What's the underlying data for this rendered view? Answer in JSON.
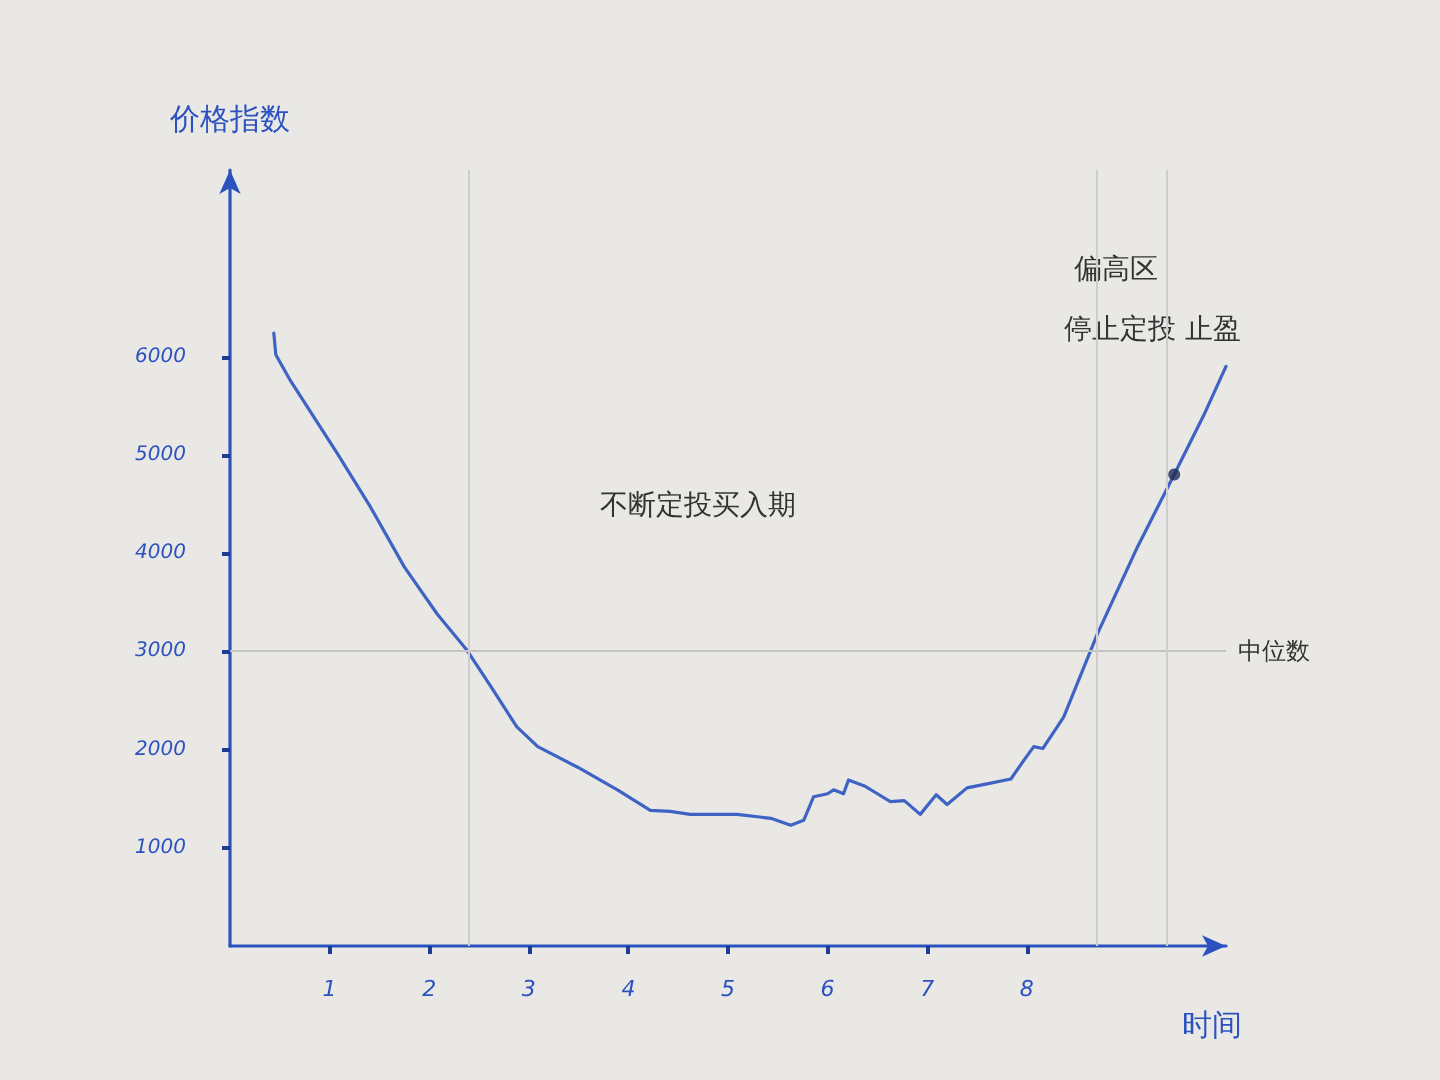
{
  "chart_data": {
    "type": "line",
    "xlabel": "时间",
    "ylabel": "价格指数",
    "annotations": [
      "不断定投买入期",
      "偏高区",
      "停止定投 止盈"
    ],
    "xlim": [
      0,
      10
    ],
    "ylim": [
      0,
      7900
    ],
    "xticks": [
      1,
      2,
      3,
      4,
      5,
      6,
      7,
      8
    ],
    "yticks": [
      1000,
      2000,
      3000,
      4000,
      5000,
      6000
    ],
    "series": [
      {
        "color": "#3f63c4",
        "x": [
          0.44,
          0.46,
          0.61,
          1.08,
          1.41,
          1.75,
          2.08,
          2.38,
          2.62,
          2.88,
          3.09,
          3.49,
          3.89,
          4.22,
          4.42,
          4.62,
          5.09,
          5.43,
          5.63,
          5.76,
          5.86,
          6.0,
          6.06,
          6.16,
          6.21,
          6.37,
          6.5,
          6.63,
          6.77,
          6.93,
          7.09,
          7.2,
          7.4,
          7.6,
          7.84,
          7.97,
          8.07,
          8.16,
          8.37,
          8.71,
          9.11,
          9.48,
          9.78,
          10.0
        ],
        "values": [
          6240,
          6020,
          5750,
          5010,
          4470,
          3860,
          3380,
          3010,
          2640,
          2230,
          2030,
          1820,
          1590,
          1380,
          1370,
          1340,
          1340,
          1300,
          1230,
          1280,
          1520,
          1550,
          1590,
          1550,
          1690,
          1630,
          1550,
          1470,
          1480,
          1340,
          1540,
          1440,
          1610,
          1650,
          1700,
          1890,
          2030,
          2010,
          2330,
          3180,
          4060,
          4800,
          5410,
          5900
        ]
      },
      {
        "type": "scatter",
        "color": "#1c2a55",
        "marker": "circle",
        "x": [
          9.48
        ],
        "values": [
          4800
        ]
      }
    ],
    "ref_lines": [
      {
        "axis": "y",
        "value": 3000,
        "label": "中位数",
        "color": "#c4c4c4"
      },
      {
        "axis": "x",
        "value": 2.4,
        "color": "#cdcdcd"
      },
      {
        "axis": "x",
        "value": 8.7,
        "color": "#cdcdcd"
      },
      {
        "axis": "x",
        "value": 9.4,
        "color": "#cdcdcd"
      }
    ],
    "grid": false,
    "marker": "none",
    "line_style": "solid"
  }
}
